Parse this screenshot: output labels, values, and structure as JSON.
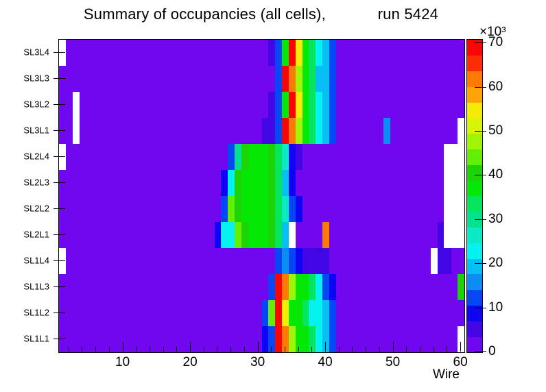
{
  "title": "Summary of occupancies (all cells),            run 5424",
  "colorbar": {
    "exponent_label": "×10³",
    "ticks": [
      0,
      10,
      20,
      30,
      40,
      50,
      60,
      70
    ],
    "range_max_k": 70.8
  },
  "palette": [
    "#7007ee",
    "#4305e6",
    "#0f05f5",
    "#0547f5",
    "#0a8df5",
    "#05bff5",
    "#05f2f0",
    "#0aeac4",
    "#05e28f",
    "#05e65e",
    "#05e805",
    "#1cd305",
    "#62ee05",
    "#a0f505",
    "#d7f505",
    "#f5ec05",
    "#ffa505",
    "#ff7905",
    "#fc2c05",
    "#f80505"
  ],
  "empty_bin_color": "#ffffff",
  "chart_data": {
    "type": "heatmap",
    "title": "Summary of occupancies (all cells),  run 5424",
    "x_label": "Wire",
    "x_ticks": [
      10,
      20,
      30,
      40,
      50,
      60
    ],
    "x_minor_step": 2,
    "wires": 60,
    "value_units": "counts ×10³",
    "k_per_level": 3.54,
    "background_value_k": 2,
    "empty_value": 0,
    "rows_top_to_bottom": [
      {
        "label": "SL3L4",
        "cells": {
          "1": 0,
          "32": 5,
          "33": 12,
          "34": 37,
          "35": 69,
          "36": 55,
          "37": 37,
          "38": 34,
          "39": 23,
          "40": 20,
          "41": 12
        }
      },
      {
        "label": "SL3L3",
        "cells": {
          "33": 12,
          "34": 69,
          "35": 62,
          "36": 48,
          "37": 37,
          "38": 34,
          "39": 20,
          "40": 20,
          "41": 12
        }
      },
      {
        "label": "SL3L2",
        "cells": {
          "3": 0,
          "32": 5,
          "33": 12,
          "34": 37,
          "35": 69,
          "36": 55,
          "37": 37,
          "38": 34,
          "39": 23,
          "40": 20,
          "41": 12
        }
      },
      {
        "label": "SL3L1",
        "cells": {
          "3": 0,
          "31": 5,
          "32": 5,
          "33": 12,
          "34": 69,
          "35": 62,
          "36": 48,
          "37": 37,
          "38": 34,
          "39": 23,
          "40": 20,
          "41": 12,
          "49": 16,
          "60": 0
        }
      },
      {
        "label": "SL2L4",
        "cells": {
          "1": 0,
          "26": 12,
          "27": 30,
          "28": 41,
          "29": 37,
          "30": 37,
          "31": 37,
          "32": 41,
          "33": 34,
          "34": 27,
          "35": 9,
          "36": 5,
          "58": 0,
          "59": 0,
          "60": 0
        }
      },
      {
        "label": "SL2L3",
        "cells": {
          "25": 9,
          "26": 23,
          "27": 41,
          "28": 37,
          "29": 37,
          "30": 37,
          "31": 37,
          "32": 41,
          "33": 34,
          "34": 20,
          "35": 9,
          "58": 0,
          "59": 0,
          "60": 0
        }
      },
      {
        "label": "SL2L2",
        "cells": {
          "25": 12,
          "26": 44,
          "27": 41,
          "28": 37,
          "29": 37,
          "30": 37,
          "31": 37,
          "32": 41,
          "33": 34,
          "34": 27,
          "35": 12,
          "36": 9,
          "58": 0,
          "59": 0,
          "60": 0
        }
      },
      {
        "label": "SL2L1",
        "cells": {
          "24": 9,
          "25": 23,
          "26": 23,
          "27": 44,
          "28": 41,
          "29": 37,
          "30": 37,
          "31": 37,
          "32": 41,
          "33": 34,
          "34": 20,
          "35": 0,
          "40": 62,
          "57": 5,
          "58": 0,
          "59": 0,
          "60": 0
        }
      },
      {
        "label": "SL1L4",
        "cells": {
          "1": 0,
          "33": 12,
          "34": 16,
          "35": 12,
          "36": 9,
          "37": 5,
          "38": 5,
          "39": 5,
          "40": 5,
          "56": 0,
          "57": 5,
          "58": 5
        }
      },
      {
        "label": "SL1L3",
        "cells": {
          "32": 12,
          "33": 69,
          "34": 62,
          "35": 48,
          "36": 37,
          "37": 37,
          "38": 34,
          "39": 23,
          "40": 12,
          "41": 9,
          "60": 41
        }
      },
      {
        "label": "SL1L2",
        "cells": {
          "31": 12,
          "32": 44,
          "33": 69,
          "34": 55,
          "35": 37,
          "36": 37,
          "37": 34,
          "38": 23,
          "39": 23,
          "40": 20,
          "41": 12
        }
      },
      {
        "label": "SL1L1",
        "cells": {
          "31": 9,
          "32": 12,
          "33": 69,
          "34": 62,
          "35": 48,
          "36": 37,
          "37": 37,
          "38": 34,
          "39": 23,
          "40": 20,
          "41": 12,
          "60": 0
        }
      }
    ]
  }
}
